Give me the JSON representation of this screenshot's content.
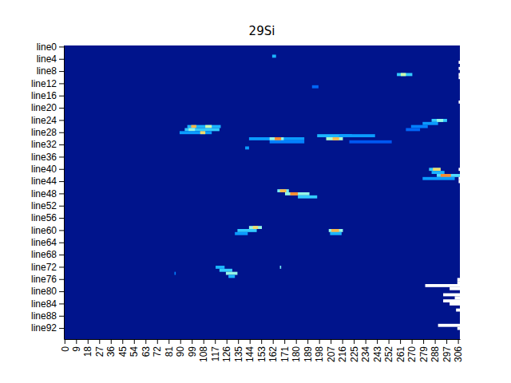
{
  "chart_data": {
    "type": "heatmap",
    "title": "29Si",
    "categories": [
      "line0",
      null,
      null,
      null,
      "line4",
      null,
      null,
      null,
      "line8",
      null,
      null,
      null,
      "line12",
      null,
      null,
      null,
      "line16",
      null,
      null,
      null,
      "line20",
      null,
      null,
      null,
      "line24",
      null,
      null,
      null,
      "line28",
      null,
      null,
      null,
      "line32",
      null,
      null,
      null,
      "line36",
      null,
      null,
      null,
      "line40",
      null,
      null,
      null,
      "line44",
      null,
      null,
      null,
      "line48",
      null,
      null,
      null,
      "line52",
      null,
      null,
      null,
      "line56",
      null,
      null,
      null,
      "line60",
      null,
      null,
      null,
      "line64",
      null,
      null,
      null,
      "line68",
      null,
      null,
      null,
      "line72",
      null,
      null,
      null,
      "line76",
      null,
      null,
      null,
      "line80",
      null,
      null,
      null,
      "line84",
      null,
      null,
      null,
      "line88",
      null,
      null,
      null,
      "line92",
      null,
      null,
      null
    ],
    "xlim": [
      -0.5,
      307.5
    ],
    "xticks": [
      0,
      9,
      18,
      27,
      36,
      45,
      54,
      63,
      72,
      81,
      90,
      99,
      108,
      117,
      126,
      135,
      144,
      153,
      162,
      171,
      180,
      189,
      198,
      207,
      216,
      225,
      234,
      243,
      252,
      261,
      270,
      279,
      288,
      297,
      306
    ],
    "color_range": [
      0,
      100
    ],
    "grid": false,
    "cell_runs": [
      [
        3,
        162,
        164,
        40
      ],
      [
        9,
        259,
        270,
        45
      ],
      [
        9,
        262,
        265,
        70
      ],
      [
        13,
        193,
        197,
        25
      ],
      [
        24,
        286,
        297,
        45
      ],
      [
        24,
        290,
        294,
        60
      ],
      [
        25,
        279,
        290,
        35
      ],
      [
        26,
        270,
        282,
        30
      ],
      [
        27,
        266,
        276,
        25
      ],
      [
        26,
        96,
        121,
        40
      ],
      [
        26,
        99,
        102,
        85
      ],
      [
        26,
        110,
        114,
        70
      ],
      [
        27,
        94,
        120,
        45
      ],
      [
        27,
        97,
        101,
        60
      ],
      [
        28,
        90,
        114,
        35
      ],
      [
        28,
        106,
        109,
        80
      ],
      [
        29,
        197,
        223,
        40
      ],
      [
        29,
        214,
        241,
        35
      ],
      [
        30,
        144,
        186,
        35
      ],
      [
        30,
        160,
        170,
        60
      ],
      [
        30,
        164,
        168,
        90
      ],
      [
        30,
        204,
        216,
        65
      ],
      [
        30,
        209,
        213,
        85
      ],
      [
        31,
        160,
        186,
        30
      ],
      [
        31,
        222,
        254,
        22
      ],
      [
        33,
        141,
        143,
        35
      ],
      [
        40,
        284,
        292,
        45
      ],
      [
        40,
        287,
        292,
        80
      ],
      [
        41,
        286,
        295,
        40
      ],
      [
        42,
        290,
        307,
        50
      ],
      [
        42,
        293,
        300,
        90
      ],
      [
        43,
        279,
        303,
        35
      ],
      [
        47,
        166,
        174,
        55
      ],
      [
        47,
        168,
        172,
        85
      ],
      [
        48,
        172,
        190,
        60
      ],
      [
        48,
        176,
        181,
        90
      ],
      [
        49,
        182,
        196,
        45
      ],
      [
        59,
        144,
        153,
        60
      ],
      [
        59,
        147,
        150,
        80
      ],
      [
        60,
        135,
        149,
        45
      ],
      [
        61,
        133,
        142,
        35
      ],
      [
        60,
        206,
        216,
        60
      ],
      [
        60,
        208,
        213,
        85
      ],
      [
        61,
        207,
        215,
        40
      ],
      [
        72,
        118,
        124,
        40
      ],
      [
        72,
        168,
        168,
        55
      ],
      [
        73,
        121,
        130,
        45
      ],
      [
        74,
        126,
        134,
        60
      ],
      [
        75,
        128,
        132,
        40
      ],
      [
        74,
        86,
        86,
        30
      ],
      [
        5,
        307,
        307,
        null
      ],
      [
        7,
        307,
        307,
        null
      ],
      [
        9,
        307,
        307,
        null
      ],
      [
        10,
        307,
        307,
        null
      ],
      [
        18,
        307,
        307,
        null
      ],
      [
        40,
        307,
        307,
        null
      ],
      [
        43,
        307,
        307,
        null
      ],
      [
        44,
        307,
        307,
        null
      ],
      [
        76,
        306,
        307,
        null
      ],
      [
        77,
        306,
        307,
        null
      ],
      [
        78,
        281,
        307,
        null
      ],
      [
        79,
        300,
        307,
        null
      ],
      [
        81,
        295,
        307,
        null
      ],
      [
        82,
        304,
        307,
        null
      ],
      [
        83,
        295,
        307,
        null
      ],
      [
        84,
        300,
        307,
        null
      ],
      [
        86,
        305,
        307,
        null
      ],
      [
        91,
        291,
        307,
        null
      ],
      [
        92,
        306,
        307,
        null
      ]
    ]
  }
}
